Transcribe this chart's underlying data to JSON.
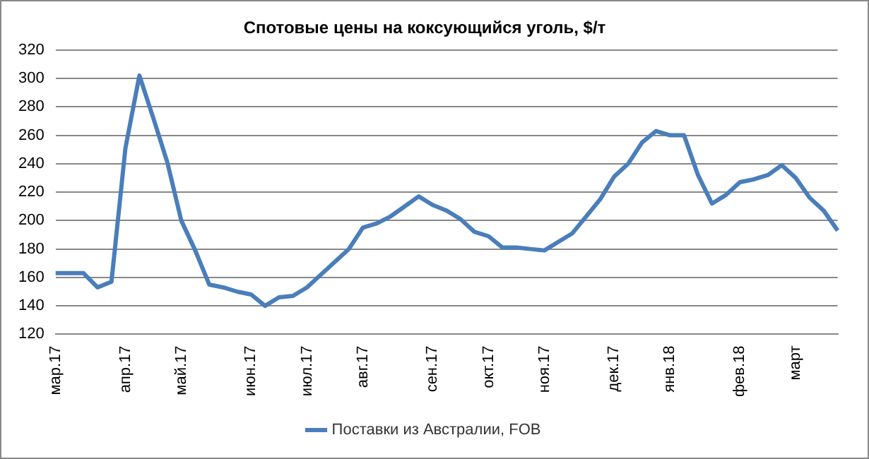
{
  "chart_data": {
    "type": "line",
    "title": "Спотовые цены на коксующийся уголь, $/т",
    "categories": [
      "мар.17",
      null,
      null,
      null,
      null,
      "апр.17",
      null,
      null,
      null,
      "май.17",
      null,
      null,
      null,
      null,
      "июн.17",
      null,
      null,
      null,
      "июл.17",
      null,
      null,
      null,
      "авг.17",
      null,
      null,
      null,
      null,
      "сен.17",
      null,
      null,
      null,
      "окт.17",
      null,
      null,
      null,
      "ноя.17",
      null,
      null,
      null,
      null,
      "дек.17",
      null,
      null,
      null,
      "янв.18",
      null,
      null,
      null,
      null,
      "фев.18",
      null,
      null,
      null,
      "март",
      null,
      null,
      null
    ],
    "series": [
      {
        "name": "Поставки из Австралии, FOB",
        "color": "#4a7ebb",
        "values": [
          163,
          163,
          163,
          153,
          157,
          251,
          302,
          272,
          241,
          200,
          179,
          155,
          153,
          150,
          148,
          140,
          146,
          147,
          153,
          162,
          171,
          180,
          195,
          198,
          203,
          210,
          217,
          211,
          207,
          201,
          192,
          189,
          181,
          181,
          180,
          179,
          185,
          191,
          203,
          215,
          231,
          240,
          255,
          263,
          260,
          260,
          232,
          212,
          218,
          227,
          229,
          232,
          239,
          230,
          216,
          207,
          193
        ]
      }
    ],
    "ylim": [
      120,
      320
    ],
    "yticks": [
      120,
      140,
      160,
      180,
      200,
      220,
      240,
      260,
      280,
      300,
      320
    ],
    "grid": "y",
    "legend": "bottom",
    "marker": "none",
    "line_style": "solid"
  }
}
